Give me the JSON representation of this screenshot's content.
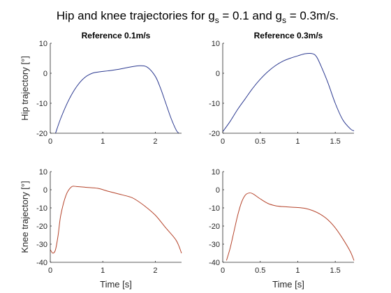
{
  "figure": {
    "title_parts": [
      "Hip and knee trajectories for g",
      "s",
      " = 0.1 and g",
      "s",
      " = 0.3m/s."
    ]
  },
  "chart_data": [
    {
      "type": "line",
      "title": "Reference 0.1m/s",
      "xlabel": "",
      "ylabel": "Hip trajectory [°]",
      "xlim": [
        0,
        2.5
      ],
      "ylim": [
        -20,
        10
      ],
      "xticks": [
        0,
        1,
        2
      ],
      "yticks": [
        -20,
        -10,
        0,
        10
      ],
      "grid": false,
      "series": [
        {
          "color": "#2b3990",
          "x": [
            0.1,
            0.2,
            0.35,
            0.5,
            0.65,
            0.8,
            0.95,
            1.1,
            1.3,
            1.5,
            1.7,
            1.85,
            2.0,
            2.1,
            2.2,
            2.3,
            2.4,
            2.45
          ],
          "y": [
            -20,
            -15,
            -9,
            -4.5,
            -1.5,
            0,
            0.5,
            0.8,
            1.3,
            2,
            2.5,
            2,
            -1,
            -5,
            -10,
            -15,
            -19,
            -20
          ]
        }
      ]
    },
    {
      "type": "line",
      "title": "Reference 0.3m/s",
      "xlabel": "",
      "ylabel": "",
      "xlim": [
        0,
        1.75
      ],
      "ylim": [
        -20,
        10
      ],
      "xticks": [
        0,
        0.5,
        1,
        1.5
      ],
      "yticks": [
        -20,
        -10,
        0,
        10
      ],
      "grid": false,
      "series": [
        {
          "color": "#2b3990",
          "x": [
            0,
            0.1,
            0.2,
            0.3,
            0.4,
            0.5,
            0.6,
            0.7,
            0.8,
            0.9,
            1.0,
            1.1,
            1.2,
            1.25,
            1.3,
            1.4,
            1.5,
            1.6,
            1.7,
            1.75
          ],
          "y": [
            -19.5,
            -16,
            -12,
            -8.5,
            -5,
            -2,
            0.5,
            2.5,
            4,
            5,
            5.8,
            6.5,
            6.5,
            5.5,
            3,
            -3,
            -10,
            -15.5,
            -18.5,
            -19.2
          ]
        }
      ]
    },
    {
      "type": "line",
      "title": "",
      "xlabel": "Time [s]",
      "ylabel": "Knee trajectory [°]",
      "xlim": [
        0,
        2.5
      ],
      "ylim": [
        -40,
        10
      ],
      "xticks": [
        0,
        1,
        2
      ],
      "yticks": [
        -40,
        -30,
        -20,
        -10,
        0,
        10
      ],
      "grid": false,
      "series": [
        {
          "color": "#b5432a",
          "x": [
            0,
            0.05,
            0.1,
            0.15,
            0.2,
            0.3,
            0.4,
            0.5,
            0.7,
            0.9,
            1.1,
            1.3,
            1.5,
            1.6,
            1.8,
            2.0,
            2.2,
            2.4,
            2.5
          ],
          "y": [
            -33,
            -35,
            -33,
            -25,
            -14,
            -3,
            1.5,
            1.8,
            1.3,
            0.8,
            -0.8,
            -2.3,
            -3.8,
            -5,
            -9,
            -14,
            -21,
            -28,
            -35
          ]
        }
      ]
    },
    {
      "type": "line",
      "title": "",
      "xlabel": "Time [s]",
      "ylabel": "",
      "xlim": [
        0,
        1.75
      ],
      "ylim": [
        -40,
        10
      ],
      "xticks": [
        0,
        0.5,
        1,
        1.5
      ],
      "yticks": [
        -40,
        -30,
        -20,
        -10,
        0,
        10
      ],
      "grid": false,
      "series": [
        {
          "color": "#b5432a",
          "x": [
            0.05,
            0.1,
            0.15,
            0.2,
            0.25,
            0.3,
            0.35,
            0.4,
            0.5,
            0.6,
            0.7,
            0.8,
            1.0,
            1.1,
            1.2,
            1.3,
            1.4,
            1.5,
            1.6,
            1.7,
            1.75
          ],
          "y": [
            -39,
            -32,
            -23,
            -14,
            -7,
            -3,
            -1.8,
            -2.2,
            -5,
            -7.5,
            -8.8,
            -9.3,
            -9.8,
            -10.3,
            -11.5,
            -13.5,
            -16.5,
            -21,
            -27,
            -34,
            -39
          ]
        }
      ]
    }
  ]
}
